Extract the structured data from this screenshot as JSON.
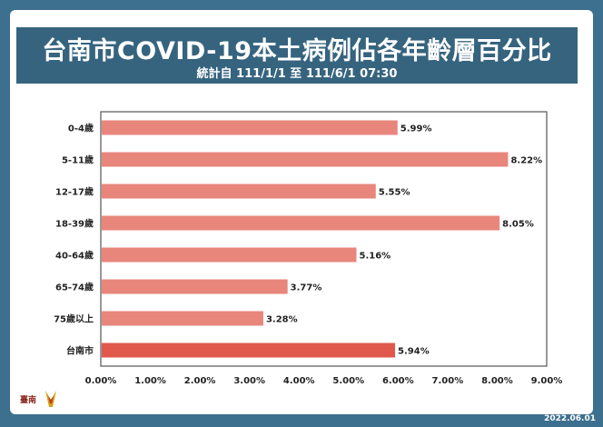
{
  "chart_data": {
    "type": "bar",
    "orientation": "horizontal",
    "title": "台南市COVID-19本土病例佔各年齡層百分比",
    "subtitle": "統計自 111/1/1 至 111/6/1 07:30",
    "categories": [
      "0-4歲",
      "5-11歲",
      "12-17歲",
      "18-39歲",
      "40-64歲",
      "65-74歲",
      "75歲以上",
      "台南市"
    ],
    "values": [
      5.99,
      8.22,
      5.55,
      8.05,
      5.16,
      3.77,
      3.28,
      5.94
    ],
    "data_labels": [
      "5.99%",
      "8.22%",
      "5.55%",
      "8.05%",
      "5.16%",
      "3.77%",
      "3.28%",
      "5.94%"
    ],
    "xlim": [
      0,
      9
    ],
    "x_ticks": [
      "0.00%",
      "1.00%",
      "2.00%",
      "3.00%",
      "4.00%",
      "5.00%",
      "6.00%",
      "7.00%",
      "8.00%",
      "9.00%"
    ],
    "xlabel": "",
    "ylabel": "",
    "grid": false,
    "legend": "none",
    "colors": {
      "bar": "#e8867c",
      "bar_highlight": "#e0584c",
      "title_bg": "#36647f",
      "page_bg": "#3d6f8e"
    }
  },
  "logo_text": "臺南",
  "footer_date": "2022.06.01"
}
